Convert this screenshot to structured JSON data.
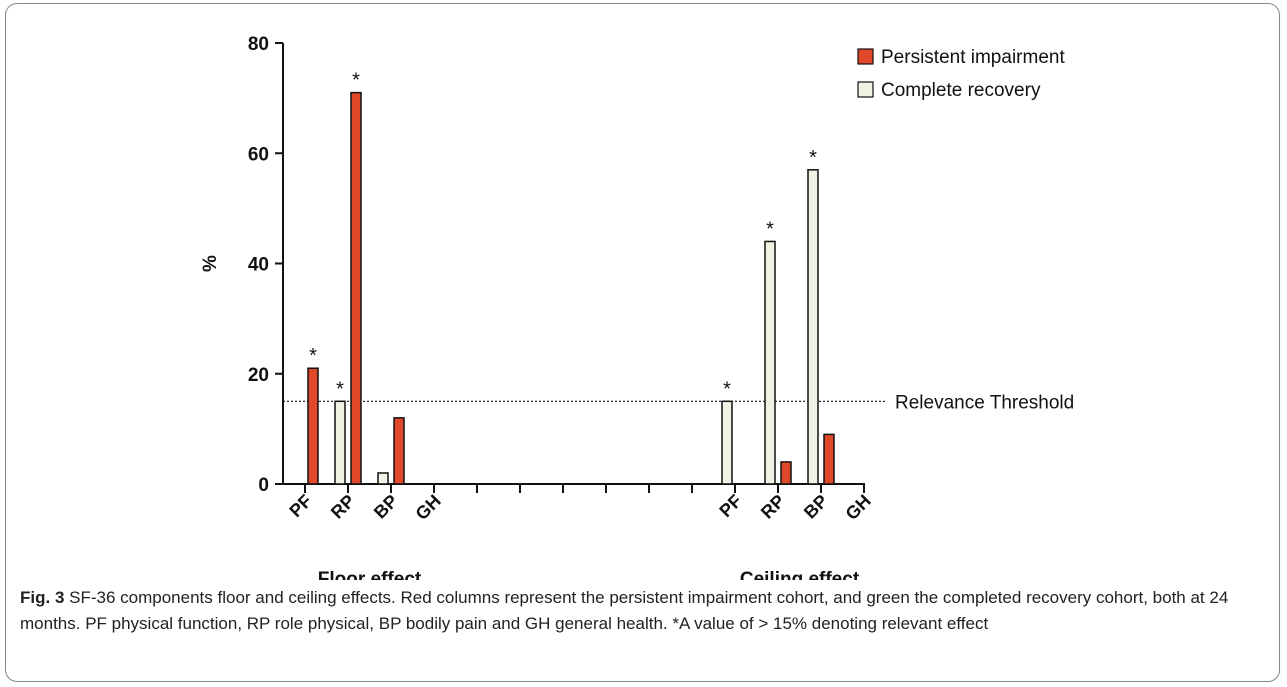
{
  "chart_data": {
    "type": "bar",
    "categories": [
      "PF",
      "RP",
      "BP",
      "GH",
      null,
      null,
      null,
      null,
      null,
      null,
      "PF",
      "RP",
      "BP",
      "GH"
    ],
    "series": [
      {
        "name": "Persistent impairment",
        "color": "#e0482a",
        "values": [
          21,
          71,
          12,
          0,
          null,
          null,
          null,
          null,
          null,
          null,
          0,
          4,
          9,
          0
        ]
      },
      {
        "name": "Complete recovery",
        "color": "#f1f2e4",
        "values": [
          0,
          15,
          2,
          0,
          null,
          null,
          null,
          null,
          null,
          null,
          15,
          44,
          57,
          0
        ]
      }
    ],
    "ylabel": "%",
    "ylim": [
      0,
      80
    ],
    "yticks": [
      0,
      20,
      40,
      60,
      80
    ],
    "threshold": {
      "value": 15,
      "label": "Relevance Threshold"
    },
    "annotations": [
      {
        "text": "*",
        "series": 0,
        "index": 0
      },
      {
        "text": "*",
        "series": 1,
        "index": 1
      },
      {
        "text": "*",
        "series": 0,
        "index": 1
      },
      {
        "text": "*",
        "series": 1,
        "index": 10
      },
      {
        "text": "*",
        "series": 1,
        "index": 11
      },
      {
        "text": "*",
        "series": 1,
        "index": 12
      }
    ],
    "groups": [
      {
        "label": "Floor effect",
        "from": 0,
        "to": 3
      },
      {
        "label": "Ceiling effect",
        "from": 10,
        "to": 13
      }
    ],
    "legend": "upper right"
  },
  "caption": {
    "label": "Fig. 3",
    "text": "SF-36 components floor and ceiling effects. Red columns represent the persistent impairment cohort, and green the completed recovery cohort, both at 24 months. PF physical function, RP role physical, BP bodily pain and GH general health. *A value of > 15% denoting relevant effect"
  }
}
